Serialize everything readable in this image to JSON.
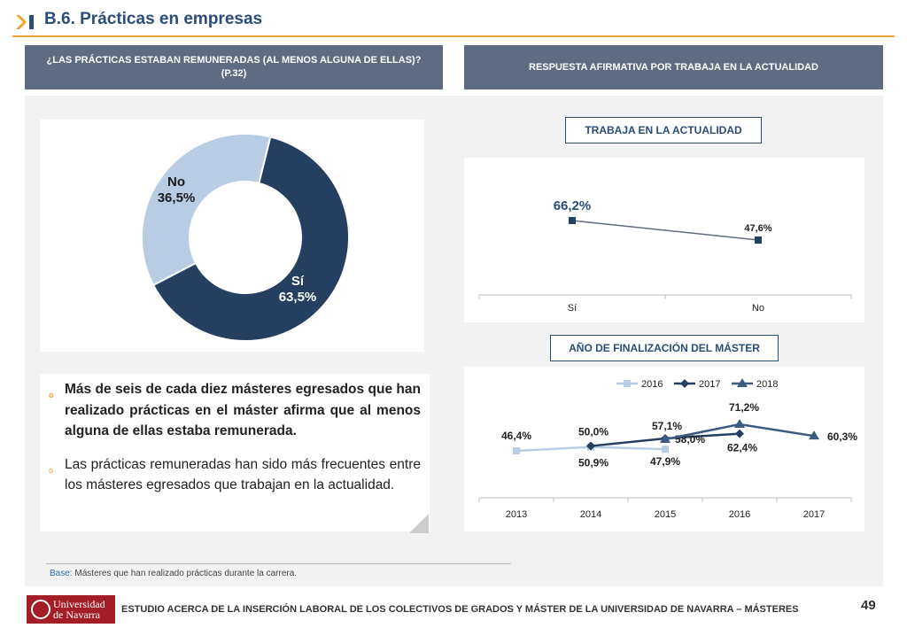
{
  "header": {
    "title": "B.6. Prácticas en empresas"
  },
  "panels": {
    "left_title_line1": "¿LAS PRÁCTICAS ESTABAN REMUNERADAS (AL MENOS ALGUNA DE ELLAS)?",
    "left_title_line2": "(P.32)",
    "right_title": "RESPUESTA AFIRMATIVA POR TRABAJA EN LA ACTUALIDAD"
  },
  "subtitles": {
    "work": "TRABAJA EN LA ACTUALIDAD",
    "year": "AÑO DE FINALIZACIÓN DEL MÁSTER"
  },
  "bullets": {
    "first": "Más de seis de cada diez másteres egresados que han realizado prácticas en el máster afirma que al menos alguna de ellas estaba remunerada.",
    "second": "Las prácticas remuneradas han sido más frecuentes entre los másteres egresados que trabajan en la actualidad."
  },
  "base": {
    "label": "Base:",
    "text": "Másteres que han realizado prácticas durante la carrera."
  },
  "footer": {
    "logo_text_1": "Universidad",
    "logo_text_2": "de Navarra",
    "text": "ESTUDIO ACERCA DE LA INSERCIÓN LABORAL DE LOS COLECTIVOS DE GRADOS Y MÁSTER DE LA UNIVERSIDAD DE NAVARRA – MÁSTERES",
    "page": "49"
  },
  "colors": {
    "dark": "#243f60",
    "light": "#b8cce4",
    "mid": "#3d5a80",
    "accent": "#f0a030"
  },
  "chart_data": [
    {
      "type": "pie",
      "labels": [
        "Sí",
        "No"
      ],
      "values": [
        63.5,
        36.5
      ],
      "value_labels": [
        "63,5%",
        "36,5%"
      ],
      "colors": [
        "#243f60",
        "#b8cce4"
      ]
    },
    {
      "type": "line",
      "categories": [
        "Sí",
        "No"
      ],
      "values": [
        66.2,
        47.6
      ],
      "value_labels": [
        "66,2%",
        "47,6%"
      ],
      "ylim": [
        0,
        100
      ]
    },
    {
      "type": "line",
      "categories": [
        "2013",
        "2014",
        "2015",
        "2016",
        "2017"
      ],
      "ylim": [
        0,
        100
      ],
      "series": [
        {
          "name": "2016",
          "values": [
            46.4,
            50.0,
            47.9,
            null,
            null
          ],
          "labels": [
            "46,4%",
            "50,0%",
            "47,9%",
            "",
            ""
          ],
          "color": "#b8cce4",
          "marker": "square"
        },
        {
          "name": "2017",
          "values": [
            null,
            50.9,
            58.0,
            62.4,
            null
          ],
          "labels": [
            "",
            "50,9%",
            "58,0%",
            "62,4%",
            ""
          ],
          "color": "#243f60",
          "marker": "diamond"
        },
        {
          "name": "2018",
          "values": [
            null,
            null,
            57.1,
            71.2,
            60.3
          ],
          "labels": [
            "",
            "",
            "57,1%",
            "71,2%",
            "60,3%"
          ],
          "color": "#3d5a80",
          "marker": "triangle"
        }
      ],
      "legend": "top"
    }
  ]
}
